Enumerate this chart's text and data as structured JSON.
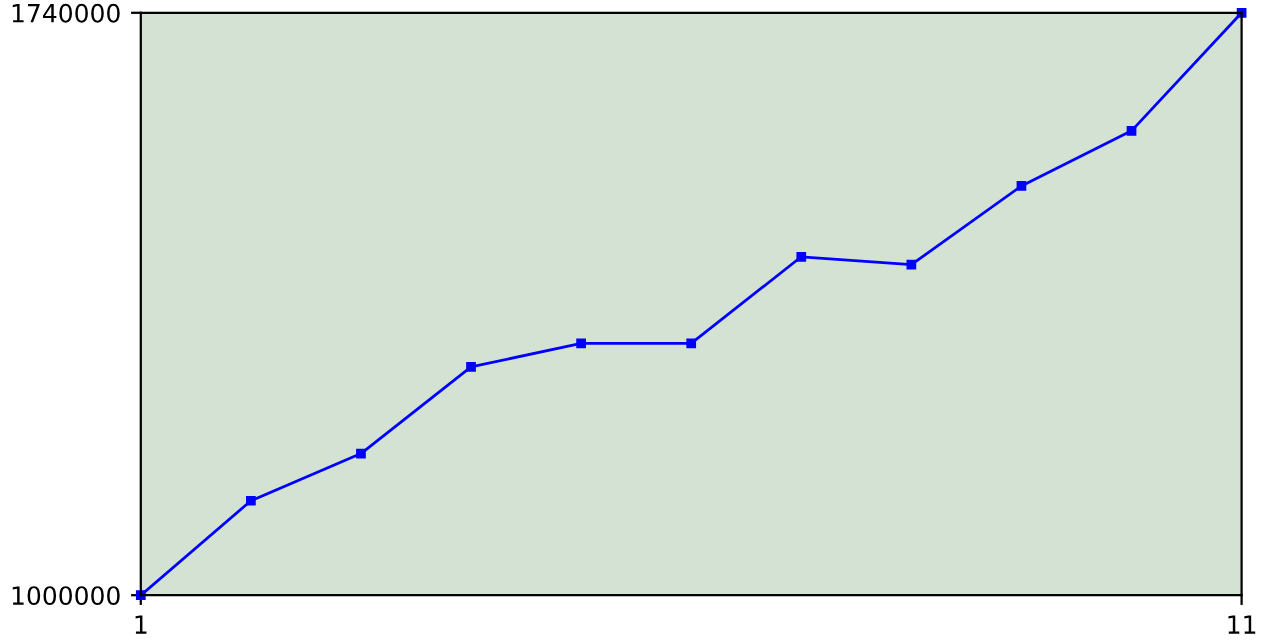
{
  "chart_data": {
    "type": "line",
    "x": [
      1,
      2,
      3,
      4,
      5,
      6,
      7,
      8,
      9,
      10,
      11
    ],
    "series": [
      {
        "color": "#0000ff",
        "values": [
          1000000,
          1120000,
          1180000,
          1290000,
          1320000,
          1320000,
          1430000,
          1420000,
          1520000,
          1590000,
          1740000
        ]
      }
    ],
    "xlim": [
      1,
      11
    ],
    "xticks": [
      1,
      11
    ],
    "ylim": [
      1000000,
      1740000
    ],
    "yticks": [
      1000000,
      1740000
    ],
    "marker": "square",
    "line_style": "solid"
  }
}
